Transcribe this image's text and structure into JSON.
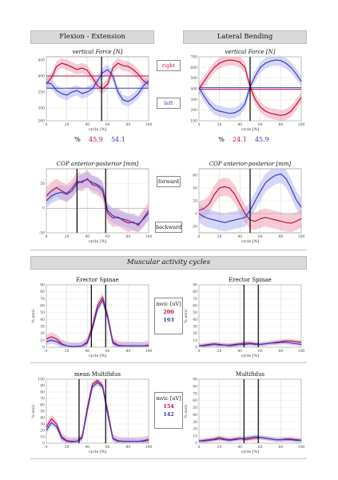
{
  "headers": {
    "flexion": "Flexion - Extension",
    "lateral": "Lateral Bending",
    "muscular": "Muscular activity cycles"
  },
  "labels": {
    "right": "right",
    "left": "left",
    "forward": "forward",
    "backward": "backward",
    "percent_sign": "%",
    "mvic_unit": "mvic [uV]"
  },
  "percents": {
    "flexion": {
      "red": "45.9",
      "blue": "54.1"
    },
    "lateral": {
      "red": "24.1",
      "blue": "45.9"
    }
  },
  "mvic": {
    "erector": {
      "red": "200",
      "blue": "193"
    },
    "multifidus": {
      "red": "154",
      "blue": "142"
    }
  },
  "colors": {
    "red": "#c0103a",
    "blue": "#3a3ac8",
    "red_band": "#f0a0b4",
    "blue_band": "#b4b4f0"
  },
  "chart_data": [
    {
      "id": "fe-force",
      "type": "line",
      "title": "vertical Force [N]",
      "xlabel": "cycle [%]",
      "xlim": [
        0,
        100
      ],
      "ylim": [
        260,
        460
      ],
      "yticks": [
        260,
        300,
        350,
        400,
        450
      ],
      "xticks": [
        0,
        20,
        40,
        60,
        80,
        100
      ],
      "vlines": [
        54
      ],
      "hlines": [
        {
          "y": 400,
          "color": "red"
        },
        {
          "y": 362,
          "color": "blue"
        }
      ],
      "series": [
        {
          "color": "red",
          "x": [
            0,
            5,
            10,
            15,
            20,
            25,
            30,
            35,
            40,
            45,
            50,
            55,
            60,
            65,
            70,
            75,
            80,
            85,
            90,
            95,
            100
          ],
          "y": [
            375,
            395,
            430,
            440,
            435,
            428,
            420,
            425,
            418,
            395,
            370,
            360,
            375,
            425,
            440,
            432,
            430,
            420,
            405,
            385,
            375
          ],
          "band": 16
        },
        {
          "color": "blue",
          "x": [
            0,
            5,
            10,
            15,
            20,
            25,
            30,
            35,
            40,
            45,
            50,
            55,
            60,
            65,
            70,
            75,
            80,
            85,
            90,
            95,
            100
          ],
          "y": [
            380,
            375,
            355,
            345,
            340,
            350,
            355,
            345,
            350,
            360,
            385,
            410,
            420,
            400,
            350,
            325,
            320,
            330,
            345,
            370,
            385
          ],
          "band": 16
        }
      ]
    },
    {
      "id": "lb-force",
      "type": "line",
      "title": "vertical Force [N]",
      "xlabel": "cycle [%]",
      "xlim": [
        0,
        100
      ],
      "ylim": [
        100,
        700
      ],
      "yticks": [
        100,
        200,
        300,
        400,
        500,
        600,
        700
      ],
      "xticks": [
        0,
        20,
        40,
        60,
        80,
        100
      ],
      "vlines": [
        50
      ],
      "hlines": [
        {
          "y": 410,
          "color": "blue"
        },
        {
          "y": 395,
          "color": "red"
        }
      ],
      "series": [
        {
          "color": "red",
          "x": [
            0,
            5,
            10,
            15,
            20,
            25,
            30,
            35,
            40,
            45,
            50,
            55,
            60,
            65,
            70,
            75,
            80,
            85,
            90,
            95,
            100
          ],
          "y": [
            400,
            470,
            540,
            600,
            640,
            660,
            670,
            665,
            650,
            600,
            420,
            300,
            230,
            190,
            170,
            160,
            150,
            160,
            190,
            250,
            320
          ],
          "band": 50
        },
        {
          "color": "blue",
          "x": [
            0,
            5,
            10,
            15,
            20,
            25,
            30,
            35,
            40,
            45,
            50,
            55,
            60,
            65,
            70,
            75,
            80,
            85,
            90,
            95,
            100
          ],
          "y": [
            410,
            330,
            260,
            210,
            190,
            180,
            170,
            175,
            200,
            260,
            420,
            520,
            600,
            640,
            660,
            670,
            665,
            640,
            600,
            540,
            470
          ],
          "band": 50
        }
      ]
    },
    {
      "id": "fe-cop",
      "type": "line",
      "title": "COP anterior-posterior [mm]",
      "xlabel": "cycle [%]",
      "xlim": [
        0,
        100
      ],
      "ylim": [
        -50,
        80
      ],
      "yticks": [
        -50,
        0,
        50
      ],
      "xticks": [
        0,
        20,
        40,
        60,
        80,
        100
      ],
      "vlines": [
        30,
        58
      ],
      "series": [
        {
          "color": "red",
          "x": [
            0,
            5,
            10,
            15,
            20,
            25,
            30,
            35,
            40,
            45,
            50,
            55,
            60,
            65,
            70,
            75,
            80,
            85,
            90,
            95,
            100
          ],
          "y": [
            25,
            35,
            42,
            35,
            30,
            40,
            55,
            52,
            60,
            48,
            45,
            35,
            -10,
            -20,
            -18,
            -25,
            -30,
            -28,
            -35,
            -20,
            -5
          ],
          "band": 18
        },
        {
          "color": "blue",
          "x": [
            0,
            5,
            10,
            15,
            20,
            25,
            30,
            35,
            40,
            45,
            50,
            55,
            60,
            65,
            70,
            75,
            80,
            85,
            90,
            95,
            100
          ],
          "y": [
            15,
            25,
            30,
            32,
            28,
            35,
            50,
            55,
            58,
            52,
            48,
            40,
            -5,
            -15,
            -20,
            -22,
            -25,
            -30,
            -32,
            -22,
            -10
          ],
          "band": 15
        }
      ]
    },
    {
      "id": "lb-cop",
      "type": "line",
      "title": "COP anterior-posterior [mm]",
      "xlabel": "cycle [%]",
      "xlim": [
        0,
        100
      ],
      "ylim": [
        -30,
        70
      ],
      "yticks": [
        -20,
        0,
        20,
        40,
        60
      ],
      "xticks": [
        0,
        20,
        40,
        60,
        80,
        100
      ],
      "vlines": [
        50
      ],
      "series": [
        {
          "color": "red",
          "x": [
            0,
            5,
            10,
            15,
            20,
            25,
            30,
            35,
            40,
            45,
            50,
            55,
            60,
            65,
            70,
            75,
            80,
            85,
            90,
            95,
            100
          ],
          "y": [
            5,
            8,
            15,
            30,
            40,
            42,
            40,
            30,
            15,
            0,
            -10,
            -12,
            -8,
            -6,
            -8,
            -10,
            -12,
            -14,
            -15,
            -12,
            -8
          ],
          "band": 14
        },
        {
          "color": "blue",
          "x": [
            0,
            5,
            10,
            15,
            20,
            25,
            30,
            35,
            40,
            45,
            50,
            55,
            60,
            65,
            70,
            75,
            80,
            85,
            90,
            95,
            100
          ],
          "y": [
            0,
            -5,
            -8,
            -10,
            -12,
            -14,
            -12,
            -10,
            -8,
            -6,
            5,
            20,
            35,
            48,
            55,
            60,
            62,
            55,
            40,
            22,
            10
          ],
          "band": 14
        }
      ]
    },
    {
      "id": "es-left",
      "type": "line",
      "title": "Erector Spinae",
      "ylabel": "% mvic",
      "xlabel": "cycle [%]",
      "xlim": [
        0,
        100
      ],
      "ylim": [
        0,
        90
      ],
      "yticks": [
        0,
        10,
        20,
        30,
        40,
        50,
        60,
        70,
        80,
        90
      ],
      "xticks": [
        0,
        20,
        40,
        60,
        80,
        100
      ],
      "vlines": [
        44,
        58
      ],
      "series": [
        {
          "color": "red",
          "x": [
            0,
            5,
            10,
            15,
            20,
            25,
            30,
            35,
            40,
            45,
            50,
            55,
            60,
            65,
            70,
            75,
            80,
            85,
            90,
            95,
            100
          ],
          "y": [
            12,
            15,
            12,
            5,
            2,
            1,
            1,
            2,
            8,
            30,
            60,
            72,
            45,
            8,
            3,
            2,
            2,
            2,
            2,
            2,
            3
          ],
          "band": 6
        },
        {
          "color": "blue",
          "x": [
            0,
            5,
            10,
            15,
            20,
            25,
            30,
            35,
            40,
            45,
            50,
            55,
            60,
            65,
            70,
            75,
            80,
            85,
            90,
            95,
            100
          ],
          "y": [
            8,
            10,
            8,
            4,
            2,
            1,
            1,
            2,
            6,
            26,
            55,
            68,
            42,
            6,
            2,
            2,
            2,
            2,
            2,
            2,
            2
          ],
          "band": 5
        }
      ]
    },
    {
      "id": "es-right",
      "type": "line",
      "title": "Erector Spinae",
      "ylabel": "% mvic",
      "xlabel": "cycle [%]",
      "xlim": [
        0,
        100
      ],
      "ylim": [
        0,
        90
      ],
      "yticks": [
        0,
        10,
        20,
        30,
        40,
        50,
        60,
        70,
        80,
        90
      ],
      "xticks": [
        0,
        20,
        40,
        60,
        80,
        100
      ],
      "vlines": [
        44,
        58
      ],
      "series": [
        {
          "color": "red",
          "x": [
            0,
            5,
            10,
            15,
            20,
            25,
            30,
            35,
            40,
            45,
            50,
            55,
            60,
            65,
            70,
            75,
            80,
            85,
            90,
            95,
            100
          ],
          "y": [
            2,
            3,
            4,
            5,
            4,
            3,
            3,
            4,
            5,
            6,
            6,
            5,
            4,
            5,
            6,
            7,
            8,
            9,
            9,
            8,
            7
          ],
          "band": 3
        },
        {
          "color": "blue",
          "x": [
            0,
            5,
            10,
            15,
            20,
            25,
            30,
            35,
            40,
            45,
            50,
            55,
            60,
            65,
            70,
            75,
            80,
            85,
            90,
            95,
            100
          ],
          "y": [
            2,
            2,
            3,
            4,
            3,
            3,
            2,
            3,
            4,
            4,
            5,
            4,
            4,
            5,
            6,
            6,
            7,
            7,
            6,
            5,
            4
          ],
          "band": 3
        }
      ]
    },
    {
      "id": "mf-left",
      "type": "line",
      "title": "mean Multifidus",
      "ylabel": "% mvic",
      "xlabel": "cycle [%]",
      "xlim": [
        0,
        100
      ],
      "ylim": [
        0,
        100
      ],
      "yticks": [
        0,
        10,
        20,
        30,
        40,
        50,
        60,
        70,
        80,
        90,
        100
      ],
      "xticks": [
        0,
        20,
        40,
        60,
        80,
        100
      ],
      "vlines": [
        32,
        58
      ],
      "series": [
        {
          "color": "red",
          "x": [
            0,
            5,
            10,
            15,
            20,
            25,
            30,
            35,
            40,
            45,
            50,
            55,
            60,
            65,
            70,
            75,
            80,
            85,
            90,
            95,
            100
          ],
          "y": [
            25,
            38,
            30,
            10,
            4,
            3,
            3,
            10,
            55,
            92,
            98,
            90,
            50,
            8,
            4,
            3,
            3,
            3,
            3,
            4,
            6
          ],
          "band": 6
        },
        {
          "color": "blue",
          "x": [
            0,
            5,
            10,
            15,
            20,
            25,
            30,
            35,
            40,
            45,
            50,
            55,
            60,
            65,
            70,
            75,
            80,
            85,
            90,
            95,
            100
          ],
          "y": [
            20,
            32,
            26,
            8,
            3,
            2,
            3,
            8,
            50,
            88,
            95,
            88,
            45,
            7,
            3,
            3,
            3,
            3,
            3,
            3,
            5
          ],
          "band": 5
        }
      ]
    },
    {
      "id": "mf-right",
      "type": "line",
      "title": "Multifidus",
      "ylabel": "% mvic",
      "xlabel": "cycle [%]",
      "xlim": [
        0,
        100
      ],
      "ylim": [
        0,
        90
      ],
      "yticks": [
        0,
        10,
        20,
        30,
        40,
        50,
        60,
        70,
        80,
        90
      ],
      "xticks": [
        0,
        20,
        40,
        60,
        80,
        100
      ],
      "vlines": [
        44,
        58
      ],
      "series": [
        {
          "color": "red",
          "x": [
            0,
            5,
            10,
            15,
            20,
            25,
            30,
            35,
            40,
            45,
            50,
            55,
            60,
            65,
            70,
            75,
            80,
            85,
            90,
            95,
            100
          ],
          "y": [
            3,
            4,
            5,
            6,
            8,
            6,
            5,
            6,
            7,
            5,
            6,
            7,
            8,
            7,
            6,
            5,
            5,
            6,
            6,
            5,
            4
          ],
          "band": 3
        },
        {
          "color": "blue",
          "x": [
            0,
            5,
            10,
            15,
            20,
            25,
            30,
            35,
            40,
            45,
            50,
            55,
            60,
            65,
            70,
            75,
            80,
            85,
            90,
            95,
            100
          ],
          "y": [
            3,
            3,
            4,
            5,
            6,
            5,
            4,
            5,
            6,
            7,
            8,
            9,
            8,
            7,
            6,
            5,
            5,
            5,
            5,
            4,
            4
          ],
          "band": 3
        }
      ]
    }
  ]
}
